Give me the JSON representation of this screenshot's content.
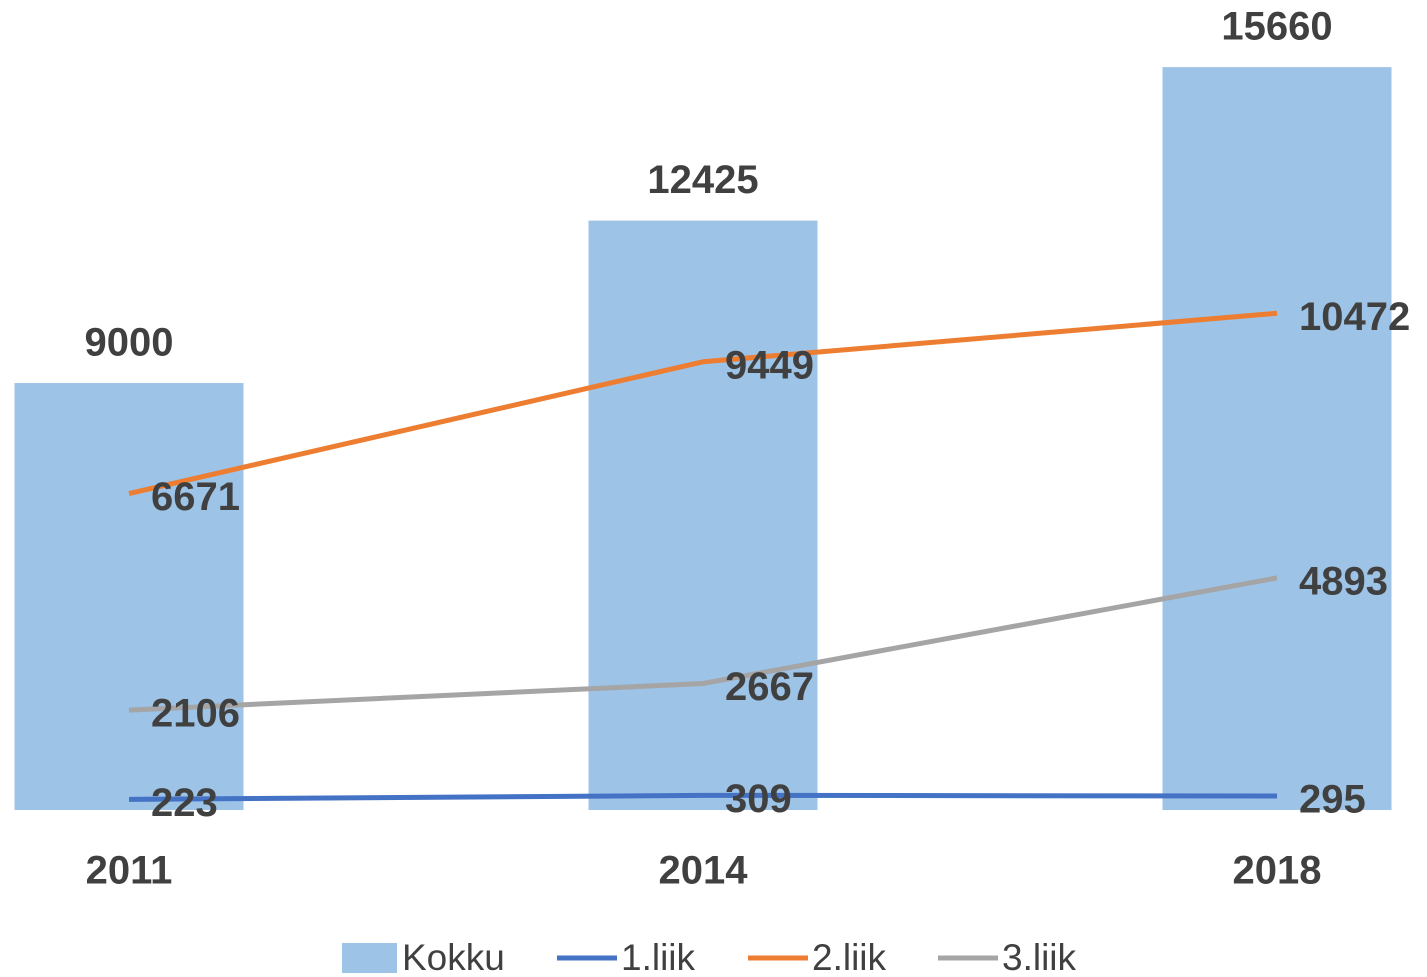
{
  "chart_data": {
    "type": "combo",
    "categories": [
      "2011",
      "2014",
      "2018"
    ],
    "series": [
      {
        "name": "Kokku",
        "type": "bar",
        "color": "#9dc3e6",
        "values": [
          9000,
          12425,
          15660
        ]
      },
      {
        "name": "1.liik",
        "type": "line",
        "color": "#4472c4",
        "values": [
          223,
          309,
          295
        ]
      },
      {
        "name": "2.liik",
        "type": "line",
        "color": "#ed7d31",
        "values": [
          6671,
          9449,
          10472
        ]
      },
      {
        "name": "3.liik",
        "type": "line",
        "color": "#a5a5a5",
        "values": [
          2106,
          2667,
          4893
        ]
      }
    ],
    "ylim": [
      0,
      16000
    ],
    "grid": false,
    "legend": "bottom"
  }
}
